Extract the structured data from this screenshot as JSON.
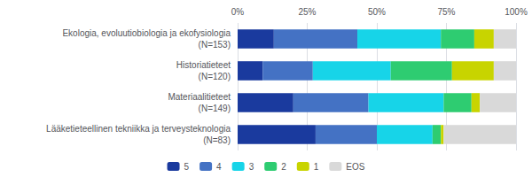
{
  "chart_data": {
    "type": "bar",
    "orientation": "horizontal",
    "stacked": true,
    "categories": [
      "Ekologia, evoluutiobiologia ja ekofysiologia\n(N=153)",
      "Historiatieteet\n(N=120)",
      "Materiaalitieteet\n(N=149)",
      "Lääketieteellinen tekniikka ja terveysteknologia\n(N=83)"
    ],
    "series": [
      {
        "name": "5",
        "color": "#1a3a9e",
        "values": [
          13,
          9,
          20,
          28
        ]
      },
      {
        "name": "4",
        "color": "#4472c4",
        "values": [
          30,
          18,
          27,
          22
        ]
      },
      {
        "name": "3",
        "color": "#17d4e8",
        "values": [
          30,
          28,
          27,
          20
        ]
      },
      {
        "name": "2",
        "color": "#2ecc71",
        "values": [
          12,
          22,
          10,
          3
        ]
      },
      {
        "name": "1",
        "color": "#c8d400",
        "values": [
          7,
          15,
          3,
          1
        ]
      },
      {
        "name": "EOS",
        "color": "#d9d9d9",
        "values": [
          8,
          8,
          13,
          26
        ]
      }
    ],
    "xlim": [
      0,
      100
    ],
    "xticks": [
      {
        "value": 0,
        "label": "0%"
      },
      {
        "value": 25,
        "label": "25%"
      },
      {
        "value": 50,
        "label": "50%"
      },
      {
        "value": 75,
        "label": "75%"
      },
      {
        "value": 100,
        "label": "100%"
      }
    ],
    "grid": true,
    "legend": "bottom"
  }
}
